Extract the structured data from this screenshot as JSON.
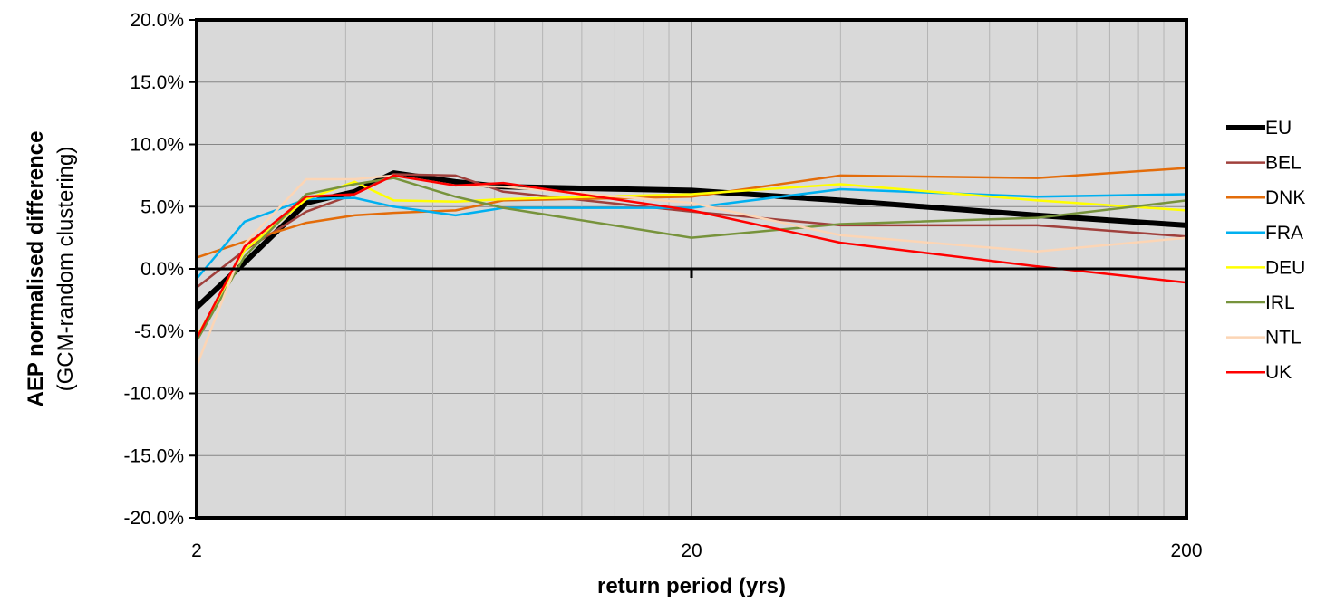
{
  "chart_data": {
    "type": "line",
    "xlabel": "return period (yrs)",
    "ylabel_bold": "AEP normalised difference",
    "ylabel_sub": "(GCM-random clustering)",
    "x_scale": "log",
    "xlim": [
      2,
      200
    ],
    "x_ticks": [
      2,
      20,
      200
    ],
    "x_tick_labels": [
      "2",
      "20",
      "200"
    ],
    "ylim": [
      -0.2,
      0.2
    ],
    "y_ticks": [
      -0.2,
      -0.15,
      -0.1,
      -0.05,
      0.0,
      0.05,
      0.1,
      0.15,
      0.2
    ],
    "y_tick_labels": [
      "-20.0%",
      "-15.0%",
      "-10.0%",
      "-5.0%",
      "0.0%",
      "5.0%",
      "10.0%",
      "15.0%",
      "20.0%"
    ],
    "grid": true,
    "plot_background": "#d9d9d9",
    "legend_position": "right",
    "x": [
      2,
      2.5,
      3.33,
      4.17,
      5,
      6.67,
      8.33,
      20,
      40,
      100,
      200
    ],
    "series": [
      {
        "name": "EU",
        "color": "#000000",
        "width": 6,
        "values": [
          -0.031,
          0.005,
          0.053,
          0.062,
          0.077,
          0.07,
          0.066,
          0.063,
          0.055,
          0.043,
          0.035
        ]
      },
      {
        "name": "BEL",
        "color": "#a0403c",
        "width": 2.5,
        "values": [
          -0.015,
          0.015,
          0.046,
          0.06,
          0.076,
          0.075,
          0.062,
          0.046,
          0.035,
          0.035,
          0.026
        ]
      },
      {
        "name": "DNK",
        "color": "#e36c0a",
        "width": 2.5,
        "values": [
          0.009,
          0.022,
          0.037,
          0.043,
          0.045,
          0.047,
          0.055,
          0.058,
          0.075,
          0.073,
          0.081
        ]
      },
      {
        "name": "FRA",
        "color": "#00b0f0",
        "width": 2.5,
        "values": [
          -0.008,
          0.038,
          0.056,
          0.057,
          0.05,
          0.043,
          0.049,
          0.049,
          0.064,
          0.058,
          0.06
        ]
      },
      {
        "name": "DEU",
        "color": "#ffff00",
        "width": 2.5,
        "values": [
          -0.055,
          0.015,
          0.056,
          0.07,
          0.055,
          0.054,
          0.056,
          0.06,
          0.068,
          0.055,
          0.047
        ]
      },
      {
        "name": "IRL",
        "color": "#77933c",
        "width": 2.5,
        "values": [
          -0.058,
          0.01,
          0.06,
          0.068,
          0.073,
          0.058,
          0.049,
          0.025,
          0.036,
          0.041,
          0.055
        ]
      },
      {
        "name": "NTL",
        "color": "#fcd5b5",
        "width": 2.5,
        "values": [
          -0.078,
          0.02,
          0.072,
          0.072,
          0.075,
          0.067,
          0.066,
          0.053,
          0.027,
          0.014,
          0.025
        ]
      },
      {
        "name": "UK",
        "color": "#ff0000",
        "width": 2.5,
        "values": [
          -0.056,
          0.018,
          0.058,
          0.06,
          0.075,
          0.067,
          0.069,
          0.047,
          0.021,
          0.002,
          -0.011
        ]
      }
    ]
  }
}
